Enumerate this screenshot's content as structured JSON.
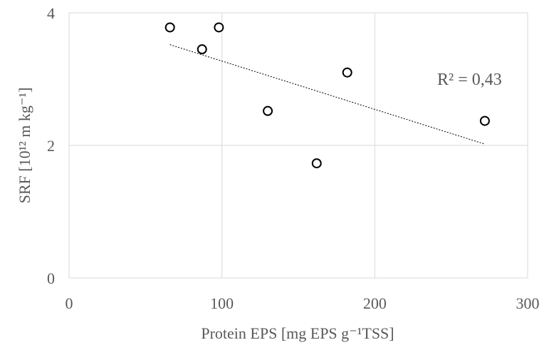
{
  "chart_data": {
    "type": "scatter",
    "xlabel": "Protein EPS [mg EPS g⁻¹TSS]",
    "ylabel": "SRF [10¹² m kg⁻¹]",
    "xlim": [
      0,
      300
    ],
    "ylim": [
      0,
      4
    ],
    "xticks": [
      0,
      100,
      200,
      300
    ],
    "yticks": [
      0,
      2,
      4
    ],
    "grid": true,
    "series": [
      {
        "x": [
          66,
          87,
          98,
          130,
          162,
          182,
          272
        ],
        "y": [
          3.78,
          3.45,
          3.78,
          2.52,
          1.73,
          3.1,
          2.37
        ],
        "marker": "open-circle",
        "color": "#000000"
      }
    ],
    "trendline": {
      "type": "linear",
      "x": [
        66,
        272
      ],
      "y": [
        3.52,
        2.02
      ],
      "style": "dotted"
    },
    "annotations": [
      {
        "text": "R² = 0,43"
      }
    ]
  }
}
